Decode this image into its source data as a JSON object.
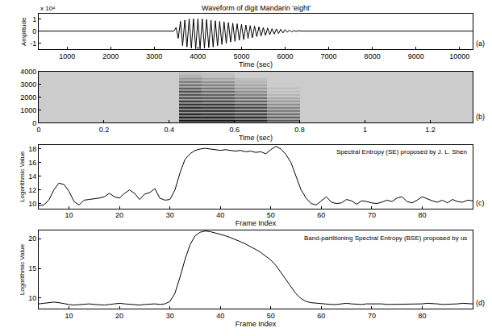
{
  "chart_data": [
    {
      "type": "line",
      "title": "Waveform of digit Mandarin 'eight'",
      "x_label": "Time (sec)",
      "y_label": "Amplitude",
      "annotations": [
        "x 10⁴"
      ],
      "panel_label": "(a)",
      "color": "#000000",
      "grid": false,
      "xlim": [
        350,
        10300
      ],
      "ylim": [
        -1.5,
        1.4
      ],
      "xticks": [
        1000,
        2000,
        3000,
        4000,
        5000,
        6000,
        7000,
        8000,
        9000,
        10000
      ],
      "yticks": [
        -1,
        0,
        1
      ],
      "x": [
        350,
        3450,
        3500,
        3550,
        3600,
        3650,
        3700,
        3750,
        3800,
        3850,
        3900,
        3950,
        4000,
        4050,
        4100,
        4150,
        4200,
        4250,
        4300,
        4350,
        4400,
        4450,
        4500,
        4550,
        4600,
        4650,
        4700,
        4750,
        4800,
        4850,
        4900,
        4950,
        5000,
        5050,
        5100,
        5150,
        5200,
        5250,
        5300,
        5350,
        5400,
        5450,
        5500,
        5550,
        5600,
        5650,
        5700,
        5750,
        5800,
        5850,
        5900,
        5950,
        6000,
        6050,
        6100,
        6150,
        6200,
        6250,
        6300,
        6400,
        10300
      ],
      "values": [
        0,
        0,
        0.3,
        -0.6,
        0.8,
        -1.2,
        0.9,
        -1.3,
        1.0,
        -1.4,
        1.0,
        -1.45,
        1.0,
        -1.45,
        1.0,
        -1.4,
        0.95,
        -1.35,
        0.9,
        -1.3,
        0.85,
        -1.2,
        0.8,
        -1.1,
        0.75,
        -1.0,
        0.7,
        -0.9,
        0.65,
        -0.85,
        0.6,
        -0.75,
        0.55,
        -0.7,
        0.5,
        -0.6,
        0.45,
        -0.55,
        0.4,
        -0.45,
        0.35,
        -0.4,
        0.3,
        -0.35,
        0.25,
        -0.3,
        0.2,
        -0.25,
        0.18,
        -0.2,
        0.15,
        -0.15,
        0.12,
        -0.1,
        0.08,
        -0.07,
        0.05,
        -0.04,
        0.03,
        0,
        0
      ]
    },
    {
      "type": "heatmap",
      "x_label": "Time (sec)",
      "panel_label": "(b)",
      "grid": false,
      "xlim": [
        0,
        1.33
      ],
      "ylim": [
        0,
        4000
      ],
      "xticks": [
        0,
        0.2,
        0.4,
        0.6,
        0.8,
        1,
        1.2
      ],
      "yticks": [
        0,
        1000,
        2000,
        3000,
        4000
      ],
      "zlim": [
        0,
        1
      ],
      "x_edges": [
        0,
        0.43,
        0.5,
        0.6,
        0.7,
        0.8,
        1.33
      ],
      "y_edges": [
        0,
        125,
        250,
        375,
        500,
        625,
        750,
        875,
        1000,
        1125,
        1250,
        1375,
        1500,
        1625,
        1750,
        1875,
        2000,
        2125,
        2250,
        2375,
        2500,
        2625,
        2750,
        2875,
        3000,
        3125,
        3250,
        3375,
        3500,
        3625,
        3750,
        3875,
        4000
      ],
      "cells": [
        [
          0.2,
          0.5,
          0.5,
          0.45,
          0.35,
          0.2
        ],
        [
          0.2,
          0.9,
          0.9,
          0.85,
          0.65,
          0.2
        ],
        [
          0.2,
          0.45,
          0.45,
          0.4,
          0.3,
          0.2
        ],
        [
          0.2,
          0.9,
          0.9,
          0.85,
          0.65,
          0.2
        ],
        [
          0.2,
          0.45,
          0.45,
          0.4,
          0.3,
          0.2
        ],
        [
          0.2,
          0.9,
          0.85,
          0.8,
          0.6,
          0.2
        ],
        [
          0.2,
          0.4,
          0.4,
          0.35,
          0.3,
          0.2
        ],
        [
          0.2,
          0.85,
          0.85,
          0.8,
          0.55,
          0.2
        ],
        [
          0.2,
          0.4,
          0.4,
          0.35,
          0.3,
          0.2
        ],
        [
          0.2,
          0.85,
          0.8,
          0.75,
          0.5,
          0.2
        ],
        [
          0.2,
          0.4,
          0.4,
          0.35,
          0.25,
          0.2
        ],
        [
          0.2,
          0.8,
          0.8,
          0.7,
          0.45,
          0.2
        ],
        [
          0.2,
          0.4,
          0.35,
          0.3,
          0.25,
          0.2
        ],
        [
          0.2,
          0.8,
          0.75,
          0.65,
          0.4,
          0.2
        ],
        [
          0.2,
          0.35,
          0.35,
          0.3,
          0.25,
          0.2
        ],
        [
          0.2,
          0.75,
          0.7,
          0.6,
          0.35,
          0.2
        ],
        [
          0.2,
          0.35,
          0.35,
          0.3,
          0.2,
          0.2
        ],
        [
          0.2,
          0.7,
          0.65,
          0.5,
          0.3,
          0.2
        ],
        [
          0.2,
          0.35,
          0.3,
          0.3,
          0.2,
          0.2
        ],
        [
          0.2,
          0.7,
          0.6,
          0.45,
          0.25,
          0.2
        ],
        [
          0.2,
          0.35,
          0.3,
          0.25,
          0.2,
          0.2
        ],
        [
          0.2,
          0.65,
          0.55,
          0.4,
          0.25,
          0.2
        ],
        [
          0.2,
          0.3,
          0.3,
          0.25,
          0.2,
          0.2
        ],
        [
          0.2,
          0.6,
          0.5,
          0.35,
          0.2,
          0.2
        ],
        [
          0.2,
          0.3,
          0.3,
          0.25,
          0.2,
          0.2
        ],
        [
          0.2,
          0.55,
          0.45,
          0.3,
          0.2,
          0.2
        ],
        [
          0.2,
          0.3,
          0.25,
          0.25,
          0.2,
          0.2
        ],
        [
          0.2,
          0.4,
          0.35,
          0.25,
          0.2,
          0.2
        ],
        [
          0.2,
          0.3,
          0.25,
          0.2,
          0.2,
          0.2
        ],
        [
          0.2,
          0.3,
          0.25,
          0.2,
          0.2,
          0.2
        ],
        [
          0.2,
          0.25,
          0.25,
          0.2,
          0.2,
          0.2
        ],
        [
          0.2,
          0.25,
          0.2,
          0.2,
          0.2,
          0.2
        ]
      ]
    },
    {
      "type": "line",
      "x_label": "Frame Index",
      "y_label": "Logorithmic Value",
      "annotations": [
        "Spectral Entropy (SE) proposed by J. L. Shen"
      ],
      "panel_label": "(c)",
      "color": "#000000",
      "grid": false,
      "xlim": [
        4,
        90
      ],
      "ylim": [
        9.3,
        18.6
      ],
      "xticks": [
        10,
        20,
        30,
        40,
        50,
        60,
        70,
        80
      ],
      "yticks": [
        10,
        12,
        14,
        16,
        18
      ],
      "x": [
        4,
        5,
        6,
        7,
        8,
        9,
        10,
        11,
        12,
        13,
        14,
        15,
        16,
        17,
        18,
        19,
        20,
        21,
        22,
        23,
        24,
        25,
        26,
        27,
        28,
        29,
        30,
        31,
        32,
        33,
        34,
        35,
        36,
        37,
        38,
        39,
        40,
        41,
        42,
        43,
        44,
        45,
        46,
        47,
        48,
        49,
        50,
        51,
        52,
        53,
        54,
        55,
        56,
        57,
        58,
        59,
        60,
        61,
        62,
        63,
        64,
        65,
        66,
        67,
        68,
        69,
        70,
        71,
        72,
        73,
        74,
        75,
        76,
        77,
        78,
        79,
        80,
        81,
        82,
        83,
        84,
        85,
        86,
        87,
        88,
        89,
        90
      ],
      "values": [
        9.7,
        9.8,
        10.5,
        12.0,
        13.0,
        12.8,
        11.8,
        10.3,
        9.8,
        10.5,
        10.6,
        10.7,
        10.8,
        11.0,
        11.5,
        11.0,
        10.8,
        11.5,
        12.0,
        11.5,
        10.6,
        11.4,
        11.6,
        12.2,
        10.8,
        10.5,
        10.6,
        12.0,
        14.5,
        16.5,
        17.3,
        17.8,
        18.0,
        18.1,
        18.0,
        17.9,
        17.8,
        17.9,
        17.8,
        17.7,
        17.8,
        17.6,
        17.7,
        17.5,
        17.6,
        17.3,
        17.9,
        18.4,
        18.0,
        17.2,
        16.0,
        14.0,
        12.0,
        10.8,
        10.0,
        9.8,
        10.4,
        11.0,
        10.2,
        10.0,
        10.1,
        10.6,
        10.4,
        9.9,
        10.4,
        10.3,
        10.1,
        10.0,
        10.2,
        10.5,
        10.3,
        10.8,
        11.0,
        10.3,
        10.1,
        10.5,
        11.0,
        10.7,
        10.4,
        10.2,
        10.5,
        10.1,
        10.6,
        10.3,
        10.2,
        10.5,
        10.4
      ]
    },
    {
      "type": "line",
      "x_label": "Frame Index",
      "y_label": "Logorithmic Value",
      "annotations": [
        "Band-partitioning Spectral Entropy (BSE) proposed by us"
      ],
      "panel_label": "(d)",
      "color": "#000000",
      "grid": false,
      "xlim": [
        4,
        90
      ],
      "ylim": [
        8.2,
        21.4
      ],
      "xticks": [
        10,
        20,
        30,
        40,
        50,
        60,
        70,
        80
      ],
      "yticks": [
        10,
        15,
        20
      ],
      "x": [
        4,
        5,
        6,
        7,
        8,
        9,
        10,
        11,
        12,
        13,
        14,
        15,
        16,
        17,
        18,
        19,
        20,
        21,
        22,
        23,
        24,
        25,
        26,
        27,
        28,
        29,
        30,
        31,
        32,
        33,
        34,
        35,
        36,
        37,
        38,
        39,
        40,
        41,
        42,
        43,
        44,
        45,
        46,
        47,
        48,
        49,
        50,
        51,
        52,
        53,
        54,
        55,
        56,
        57,
        58,
        59,
        60,
        61,
        62,
        63,
        64,
        65,
        66,
        67,
        68,
        69,
        70,
        71,
        72,
        73,
        74,
        75,
        76,
        77,
        78,
        79,
        80,
        81,
        82,
        83,
        84,
        85,
        86,
        87,
        88,
        89,
        90
      ],
      "values": [
        9.0,
        9.1,
        9.2,
        9.3,
        9.2,
        9.0,
        8.9,
        8.8,
        8.9,
        9.0,
        9.0,
        8.9,
        8.8,
        8.8,
        8.9,
        9.0,
        9.1,
        9.0,
        8.9,
        8.8,
        8.8,
        8.9,
        9.0,
        9.0,
        8.9,
        9.0,
        9.4,
        10.8,
        13.5,
        16.5,
        19.0,
        20.5,
        21.1,
        21.3,
        21.2,
        21.0,
        20.8,
        20.5,
        20.2,
        19.9,
        19.5,
        19.1,
        18.7,
        18.2,
        17.7,
        17.1,
        16.4,
        15.5,
        14.3,
        13.0,
        11.8,
        10.7,
        9.9,
        9.4,
        9.2,
        9.1,
        9.0,
        9.0,
        8.9,
        8.9,
        9.0,
        9.1,
        9.0,
        8.9,
        8.9,
        9.0,
        9.0,
        9.1,
        9.0,
        8.9,
        8.9,
        9.0,
        9.0,
        9.0,
        8.9,
        8.9,
        9.0,
        9.1,
        9.1,
        9.0,
        8.9,
        8.9,
        9.0,
        9.0,
        9.1,
        9.0,
        9.0
      ]
    }
  ]
}
